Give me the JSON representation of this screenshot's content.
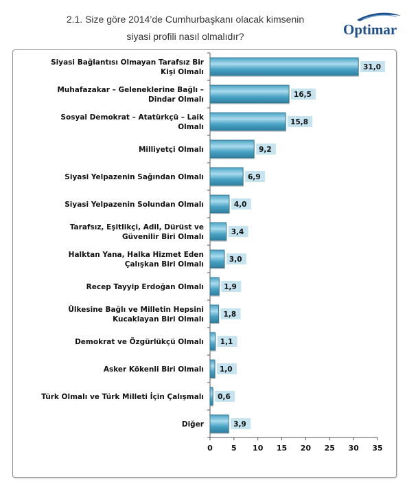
{
  "header": {
    "title_line1": "2.1. Size göre 2014’de Cumhurbaşkanı olacak kimsenin",
    "title_line2": "siyasi profili nasıl olmalıdır?",
    "logo_text": "Optimar"
  },
  "colors": {
    "bar": "#4aa3c4",
    "bar_light": "#a9dbee",
    "label_bg": "#c6e4f0",
    "axis": "#555555"
  },
  "chart_data": {
    "type": "bar",
    "orientation": "horizontal",
    "categories": [
      [
        "Siyasi Bağlantısı Olmayan Tarafsız Bir",
        "Kişi Olmalı"
      ],
      [
        "Muhafazakar – Geleneklerine Bağlı –",
        "Dindar Olmalı"
      ],
      [
        "Sosyal Demokrat – Atatürkçü – Laik",
        "Olmalı"
      ],
      [
        "Milliyetçi Olmalı"
      ],
      [
        "Siyasi Yelpazenin Sağından Olmalı"
      ],
      [
        "Siyasi Yelpazenin Solundan Olmalı"
      ],
      [
        "Tarafsız, Eşitlikçi, Adil, Dürüst ve",
        "Güvenilir Biri Olmalı"
      ],
      [
        "Halktan Yana, Halka Hizmet Eden",
        "Çalışkan Biri Olmalı"
      ],
      [
        "Recep Tayyip Erdoğan Olmalı"
      ],
      [
        "Ülkesine Bağlı ve Milletin Hepsini",
        "Kucaklayan Biri Olmalı"
      ],
      [
        "Demokrat ve Özgürlükçü Olmalı"
      ],
      [
        "Asker Kökenli Biri Olmalı"
      ],
      [
        "Türk Olmalı ve Türk Milleti İçin Çalışmalı"
      ],
      [
        "Diğer"
      ]
    ],
    "values": [
      31.0,
      16.5,
      15.8,
      9.2,
      6.9,
      4.0,
      3.4,
      3.0,
      1.9,
      1.8,
      1.1,
      1.0,
      0.6,
      3.9
    ],
    "value_labels": [
      "31,0",
      "16,5",
      "15,8",
      "9,2",
      "6,9",
      "4,0",
      "3,4",
      "3,0",
      "1,9",
      "1,8",
      "1,1",
      "1,0",
      "0,6",
      "3,9"
    ],
    "xlim": [
      0,
      35
    ],
    "x_ticks": [
      0,
      5,
      10,
      15,
      20,
      25,
      30,
      35
    ],
    "grid": false,
    "legend": "none"
  }
}
